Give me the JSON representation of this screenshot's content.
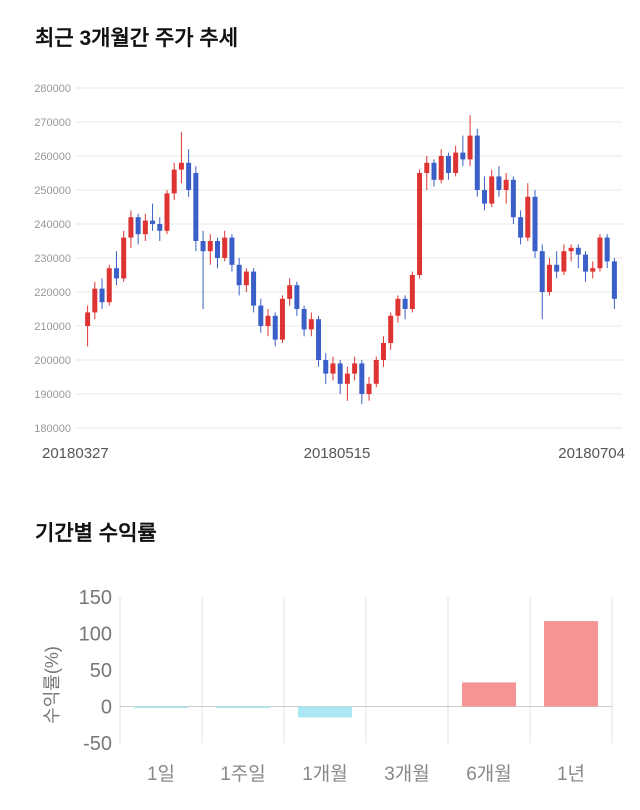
{
  "page": {
    "background": "#ffffff"
  },
  "chart_data": [
    {
      "type": "candlestick",
      "title": "최근 3개월간 주가 추세",
      "xlabel": "",
      "ylabel": "",
      "ylim": [
        180000,
        280000
      ],
      "y_ticks": [
        280000,
        270000,
        260000,
        250000,
        240000,
        230000,
        220000,
        210000,
        200000,
        190000,
        180000
      ],
      "x_tick_labels": [
        "20180327",
        "20180515",
        "20180704"
      ],
      "grid": true,
      "legend": "none",
      "up_color": "#dd3433",
      "down_color": "#3a5fc8",
      "grid_color": "#e7e7e7",
      "tick_text_color": "#999999",
      "x_label_color": "#555555",
      "candles_format": "[open, high, low, close]",
      "candles": [
        [
          210000,
          216000,
          204000,
          214000
        ],
        [
          214000,
          223000,
          212000,
          221000
        ],
        [
          221000,
          224000,
          215000,
          217000
        ],
        [
          217000,
          228000,
          216000,
          227000
        ],
        [
          227000,
          232000,
          222000,
          224000
        ],
        [
          224000,
          238000,
          223000,
          236000
        ],
        [
          236000,
          244000,
          233000,
          242000
        ],
        [
          242000,
          243000,
          234000,
          237000
        ],
        [
          237000,
          243000,
          235000,
          241000
        ],
        [
          241000,
          246000,
          238000,
          240000
        ],
        [
          240000,
          242000,
          235000,
          238000
        ],
        [
          238000,
          250000,
          237000,
          249000
        ],
        [
          249000,
          258000,
          247000,
          256000
        ],
        [
          256000,
          267000,
          252000,
          258000
        ],
        [
          258000,
          262000,
          248000,
          250000
        ],
        [
          255000,
          257000,
          232000,
          235000
        ],
        [
          235000,
          238000,
          215000,
          232000
        ],
        [
          232000,
          237000,
          228000,
          235000
        ],
        [
          235000,
          236000,
          227000,
          230000
        ],
        [
          230000,
          238000,
          229000,
          236000
        ],
        [
          236000,
          237000,
          226000,
          228000
        ],
        [
          228000,
          230000,
          219000,
          222000
        ],
        [
          222000,
          227000,
          220000,
          226000
        ],
        [
          226000,
          227000,
          214000,
          216000
        ],
        [
          216000,
          218000,
          208000,
          210000
        ],
        [
          210000,
          215000,
          207000,
          213000
        ],
        [
          213000,
          214000,
          204000,
          206000
        ],
        [
          206000,
          219000,
          205000,
          218000
        ],
        [
          218000,
          224000,
          216000,
          222000
        ],
        [
          222000,
          223000,
          213000,
          215000
        ],
        [
          215000,
          216000,
          207000,
          209000
        ],
        [
          209000,
          214000,
          207000,
          212000
        ],
        [
          212000,
          213000,
          198000,
          200000
        ],
        [
          200000,
          202000,
          193000,
          196000
        ],
        [
          196000,
          201000,
          194000,
          199000
        ],
        [
          199000,
          200000,
          190000,
          193000
        ],
        [
          193000,
          198000,
          188000,
          196000
        ],
        [
          196000,
          201000,
          194000,
          199000
        ],
        [
          199000,
          200000,
          187000,
          190000
        ],
        [
          190000,
          195000,
          188000,
          193000
        ],
        [
          193000,
          201000,
          192000,
          200000
        ],
        [
          200000,
          207000,
          198000,
          205000
        ],
        [
          205000,
          214000,
          203000,
          213000
        ],
        [
          213000,
          219000,
          211000,
          218000
        ],
        [
          218000,
          219000,
          212000,
          215000
        ],
        [
          215000,
          226000,
          214000,
          225000
        ],
        [
          225000,
          256000,
          224000,
          255000
        ],
        [
          255000,
          260000,
          250000,
          258000
        ],
        [
          258000,
          259000,
          251000,
          253000
        ],
        [
          253000,
          262000,
          252000,
          260000
        ],
        [
          260000,
          261000,
          253000,
          255000
        ],
        [
          255000,
          263000,
          254000,
          261000
        ],
        [
          261000,
          266000,
          257000,
          259000
        ],
        [
          259000,
          272000,
          257000,
          266000
        ],
        [
          266000,
          268000,
          248000,
          250000
        ],
        [
          250000,
          254000,
          244000,
          246000
        ],
        [
          246000,
          256000,
          245000,
          254000
        ],
        [
          254000,
          257000,
          248000,
          250000
        ],
        [
          250000,
          255000,
          246000,
          253000
        ],
        [
          253000,
          254000,
          240000,
          242000
        ],
        [
          242000,
          244000,
          234000,
          236000
        ],
        [
          236000,
          252000,
          235000,
          248000
        ],
        [
          248000,
          250000,
          230000,
          232000
        ],
        [
          232000,
          234000,
          212000,
          220000
        ],
        [
          220000,
          230000,
          219000,
          228000
        ],
        [
          228000,
          232000,
          224000,
          226000
        ],
        [
          226000,
          234000,
          225000,
          232000
        ],
        [
          232000,
          234000,
          229000,
          233000
        ],
        [
          233000,
          234000,
          227000,
          231000
        ],
        [
          231000,
          232000,
          223000,
          226000
        ],
        [
          226000,
          229000,
          224000,
          227000
        ],
        [
          227000,
          237000,
          226000,
          236000
        ],
        [
          236000,
          237000,
          227000,
          229000
        ],
        [
          229000,
          230000,
          215000,
          218000
        ]
      ]
    },
    {
      "type": "bar",
      "title": "기간별 수익률",
      "xlabel": "",
      "ylabel": "수익률(%)",
      "ylim": [
        -50,
        150
      ],
      "y_ticks": [
        150,
        100,
        50,
        0,
        -50
      ],
      "categories": [
        "1일",
        "1주일",
        "1개월",
        "3개월",
        "6개월",
        "1년"
      ],
      "values": [
        -2,
        -2,
        -15,
        0,
        33,
        117
      ],
      "grid": true,
      "legend": "none",
      "positive_color": "#f59495",
      "negative_color": "#a9e7f2",
      "grid_color": "#e2e2e2",
      "zero_line_color": "#cccccc",
      "tick_text_color": "#777777",
      "category_text_color": "#888888"
    }
  ]
}
